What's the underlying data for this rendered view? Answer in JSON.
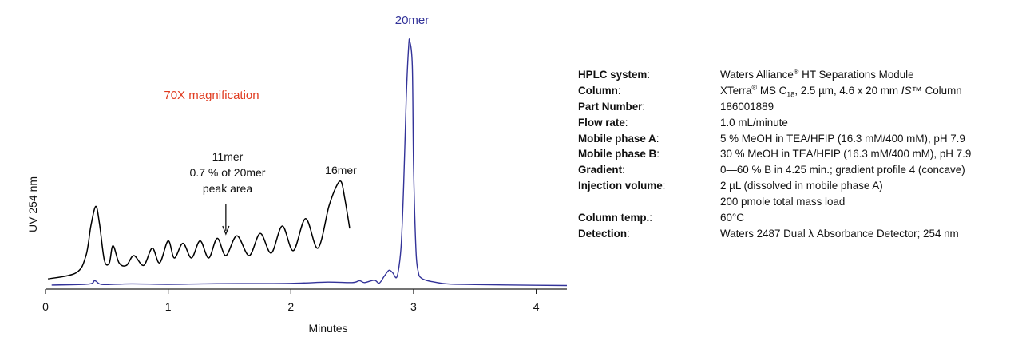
{
  "chart_data": {
    "type": "line",
    "title": "",
    "xlabel": "Minutes",
    "ylabel": "UV 254 nm",
    "xlim": [
      0,
      4.25
    ],
    "ylim": [
      0,
      1
    ],
    "x_ticks": [
      "0",
      "1",
      "2",
      "3",
      "4"
    ],
    "grid": false,
    "legend": "none",
    "colors": {
      "main_trace": "#333399",
      "magnified_trace": "#000000",
      "magnification_label": "#e03a1e"
    },
    "series": [
      {
        "trace": "main",
        "x": [
          0.05,
          0.35,
          0.4,
          0.44,
          0.5,
          0.7,
          1.0,
          1.3,
          1.6,
          2.0,
          2.3,
          2.5,
          2.56,
          2.6,
          2.68,
          2.72,
          2.76,
          2.8,
          2.83,
          2.86,
          2.88,
          2.9,
          2.92,
          2.94,
          2.96,
          2.97,
          2.99,
          3.0,
          3.02,
          3.04,
          3.06,
          3.1,
          3.15,
          3.22,
          3.3,
          3.5,
          4.0,
          4.25
        ],
        "y": [
          0.01,
          0.014,
          0.028,
          0.015,
          0.012,
          0.015,
          0.013,
          0.015,
          0.016,
          0.017,
          0.022,
          0.02,
          0.028,
          0.02,
          0.03,
          0.018,
          0.045,
          0.07,
          0.06,
          0.04,
          0.08,
          0.18,
          0.42,
          0.76,
          0.98,
          1.0,
          0.9,
          0.5,
          0.15,
          0.06,
          0.04,
          0.03,
          0.024,
          0.018,
          0.014,
          0.012,
          0.009,
          0.008
        ]
      },
      {
        "trace": "magnified",
        "x": [
          0.02,
          0.25,
          0.33,
          0.37,
          0.41,
          0.44,
          0.48,
          0.52,
          0.55,
          0.6,
          0.66,
          0.72,
          0.8,
          0.87,
          0.93,
          1.0,
          1.05,
          1.12,
          1.19,
          1.26,
          1.33,
          1.4,
          1.47,
          1.56,
          1.66,
          1.75,
          1.84,
          1.93,
          2.02,
          2.12,
          2.22,
          2.31,
          2.37,
          2.41,
          2.44,
          2.48
        ],
        "y": [
          0.035,
          0.06,
          0.13,
          0.25,
          0.33,
          0.26,
          0.11,
          0.1,
          0.17,
          0.1,
          0.09,
          0.13,
          0.09,
          0.16,
          0.1,
          0.19,
          0.12,
          0.18,
          0.12,
          0.19,
          0.12,
          0.2,
          0.13,
          0.21,
          0.13,
          0.22,
          0.14,
          0.25,
          0.15,
          0.28,
          0.16,
          0.33,
          0.41,
          0.43,
          0.36,
          0.24
        ]
      }
    ],
    "annotations": {
      "peak_main": "20mer",
      "magnification": "70X magnification",
      "peak_16": "16mer",
      "peak_11_lines": [
        "11mer",
        "0.7 % of 20mer",
        "peak area"
      ]
    }
  },
  "params": [
    {
      "label": "HPLC system",
      "sep": ":",
      "value": "Waters Alliance",
      "sup": "®",
      "value2": " HT Separations Module"
    },
    {
      "label": "Column",
      "sep": ":",
      "value": "XTerra",
      "sup": "®",
      "value2": " MS C",
      "sub": "18",
      "value3": ", 2.5 µm, 4.6 x 20 mm ",
      "ital": "IS",
      "value4": "™ Column"
    },
    {
      "label": "Part Number",
      "sep": ":",
      "value": "186001889"
    },
    {
      "label": "Flow rate",
      "sep": ":",
      "value": "1.0 mL/minute"
    },
    {
      "label": "Mobile phase A",
      "sep": ":",
      "value": "5 % MeOH in TEA/HFIP (16.3 mM/400 mM), pH 7.9"
    },
    {
      "label": "Mobile phase B",
      "sep": ":",
      "value": "30 % MeOH in TEA/HFIP (16.3 mM/400 mM), pH 7.9"
    },
    {
      "label": "Gradient",
      "sep": ":",
      "value": "0—60 % B in 4.25 min.; gradient profile 4 (concave)"
    },
    {
      "label": "Injection volume",
      "sep": ":",
      "value": "2 µL (dissolved in mobile phase A)"
    },
    {
      "label": "",
      "sep": "",
      "value": "200 pmole total mass load"
    },
    {
      "label": "Column temp.",
      "sep": ":",
      "value": "60°C"
    },
    {
      "label": "Detection",
      "sep": ":",
      "value": "Waters 2487 Dual λ Absorbance Detector; 254 nm"
    }
  ]
}
